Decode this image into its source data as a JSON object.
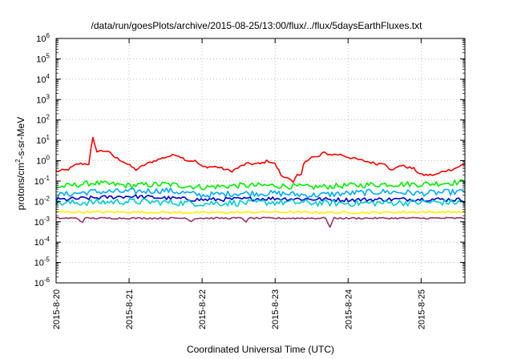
{
  "chart_data": {
    "type": "line",
    "title": "/data/run/goesPlots/archive/2015-08-25/13:00/flux/../flux/5daysEarthFluxes.txt",
    "xlabel": "Coordinated Universal Time (UTC)",
    "ylabel": {
      "base": "protons/cm",
      "sup": "2",
      "rest": "-s-sr-MeV"
    },
    "yscale": "log",
    "ylim": [
      1e-06,
      1000000.0
    ],
    "xlim": [
      0,
      5.6
    ],
    "grid": true,
    "legend": "none",
    "yticks": [
      {
        "exp": -6,
        "base": "10",
        "sup": "-6"
      },
      {
        "exp": -5,
        "base": "10",
        "sup": "-5"
      },
      {
        "exp": -4,
        "base": "10",
        "sup": "-4"
      },
      {
        "exp": -3,
        "base": "10",
        "sup": "-3"
      },
      {
        "exp": -2,
        "base": "10",
        "sup": "-2"
      },
      {
        "exp": -1,
        "base": "10",
        "sup": "-1"
      },
      {
        "exp": 0,
        "base": "10",
        "sup": "0"
      },
      {
        "exp": 1,
        "base": "10",
        "sup": "1"
      },
      {
        "exp": 2,
        "base": "10",
        "sup": "2"
      },
      {
        "exp": 3,
        "base": "10",
        "sup": "3"
      },
      {
        "exp": 4,
        "base": "10",
        "sup": "4"
      },
      {
        "exp": 5,
        "base": "10",
        "sup": "5"
      },
      {
        "exp": 6,
        "base": "10",
        "sup": "6"
      }
    ],
    "xticks": [
      {
        "day": 0,
        "label": "2015-8-20"
      },
      {
        "day": 1,
        "label": "2015-8-21"
      },
      {
        "day": 2,
        "label": "2015-8-22"
      },
      {
        "day": 3,
        "label": "2015-8-23"
      },
      {
        "day": 4,
        "label": "2015-8-24"
      },
      {
        "day": 5,
        "label": "2015-8-25"
      }
    ],
    "series": [
      {
        "color": "#ff0000",
        "jitter": 0.06,
        "points": [
          [
            0,
            0.3
          ],
          [
            0.15,
            0.35
          ],
          [
            0.3,
            0.7
          ],
          [
            0.45,
            0.7
          ],
          [
            0.5,
            14
          ],
          [
            0.55,
            3
          ],
          [
            0.7,
            3
          ],
          [
            0.8,
            1.5
          ],
          [
            0.9,
            1
          ],
          [
            1.0,
            0.6
          ],
          [
            1.1,
            0.35
          ],
          [
            1.2,
            0.6
          ],
          [
            1.35,
            1
          ],
          [
            1.5,
            1.5
          ],
          [
            1.65,
            2
          ],
          [
            1.8,
            1
          ],
          [
            1.9,
            1
          ],
          [
            2.0,
            0.5
          ],
          [
            2.2,
            0.5
          ],
          [
            2.4,
            0.3
          ],
          [
            2.6,
            0.7
          ],
          [
            2.8,
            0.7
          ],
          [
            2.9,
            1
          ],
          [
            3.0,
            0.7
          ],
          [
            3.1,
            0.15
          ],
          [
            3.2,
            0.15
          ],
          [
            3.25,
            0.08
          ],
          [
            3.3,
            0.2
          ],
          [
            3.35,
            0.15
          ],
          [
            3.4,
            0.9
          ],
          [
            3.5,
            1.5
          ],
          [
            3.6,
            1.5
          ],
          [
            3.65,
            2.5
          ],
          [
            3.75,
            2
          ],
          [
            3.9,
            2
          ],
          [
            4.0,
            1.5
          ],
          [
            4.2,
            1
          ],
          [
            4.4,
            0.7
          ],
          [
            4.5,
            0.8
          ],
          [
            4.6,
            0.3
          ],
          [
            4.7,
            0.6
          ],
          [
            4.8,
            0.5
          ],
          [
            4.9,
            0.4
          ],
          [
            5.0,
            0.2
          ],
          [
            5.1,
            0.2
          ],
          [
            5.2,
            0.2
          ],
          [
            5.3,
            0.3
          ],
          [
            5.45,
            0.4
          ],
          [
            5.6,
            0.7
          ]
        ]
      },
      {
        "color": "#00ee00",
        "jitter": 0.14,
        "points": [
          [
            0,
            0.05
          ],
          [
            0.5,
            0.08
          ],
          [
            1.0,
            0.06
          ],
          [
            1.5,
            0.07
          ],
          [
            2.0,
            0.05
          ],
          [
            2.5,
            0.06
          ],
          [
            3.0,
            0.06
          ],
          [
            3.5,
            0.05
          ],
          [
            4.0,
            0.06
          ],
          [
            4.5,
            0.07
          ],
          [
            5.0,
            0.07
          ],
          [
            5.6,
            0.09
          ]
        ]
      },
      {
        "color": "#00aaff",
        "jitter": 0.15,
        "points": [
          [
            0,
            0.02
          ],
          [
            0.5,
            0.03
          ],
          [
            1.0,
            0.03
          ],
          [
            1.5,
            0.035
          ],
          [
            2.0,
            0.02
          ],
          [
            2.5,
            0.025
          ],
          [
            3.0,
            0.025
          ],
          [
            3.5,
            0.02
          ],
          [
            4.0,
            0.025
          ],
          [
            4.5,
            0.03
          ],
          [
            5.0,
            0.025
          ],
          [
            5.6,
            0.03
          ]
        ]
      },
      {
        "color": "#0000cc",
        "jitter": 0.1,
        "points": [
          [
            0,
            0.012
          ],
          [
            1.0,
            0.018
          ],
          [
            2.0,
            0.012
          ],
          [
            3.0,
            0.014
          ],
          [
            4.0,
            0.012
          ],
          [
            5.0,
            0.013
          ],
          [
            5.6,
            0.012
          ]
        ]
      },
      {
        "color": "#00cccc",
        "jitter": 0.16,
        "points": [
          [
            0,
            0.008
          ],
          [
            1.0,
            0.01
          ],
          [
            2.0,
            0.008
          ],
          [
            3.0,
            0.009
          ],
          [
            4.0,
            0.008
          ],
          [
            5.0,
            0.009
          ],
          [
            5.6,
            0.009
          ]
        ]
      },
      {
        "color": "#ffee00",
        "jitter": 0.05,
        "points": [
          [
            0,
            0.003
          ],
          [
            1.0,
            0.003
          ],
          [
            2.0,
            0.0028
          ],
          [
            3.0,
            0.003
          ],
          [
            4.0,
            0.0028
          ],
          [
            5.0,
            0.003
          ],
          [
            5.6,
            0.003
          ]
        ]
      },
      {
        "color": "#993366",
        "jitter": 0.04,
        "points": [
          [
            0,
            0.0015
          ],
          [
            0.3,
            0.0015
          ],
          [
            0.35,
            0.0009
          ],
          [
            0.4,
            0.0015
          ],
          [
            1.0,
            0.0015
          ],
          [
            1.8,
            0.0015
          ],
          [
            1.85,
            0.001
          ],
          [
            1.9,
            0.0015
          ],
          [
            2.55,
            0.0015
          ],
          [
            2.6,
            0.001
          ],
          [
            2.65,
            0.0015
          ],
          [
            3.7,
            0.0015
          ],
          [
            3.75,
            0.0005
          ],
          [
            3.8,
            0.0015
          ],
          [
            5.0,
            0.0015
          ],
          [
            5.6,
            0.0015
          ]
        ]
      }
    ]
  }
}
